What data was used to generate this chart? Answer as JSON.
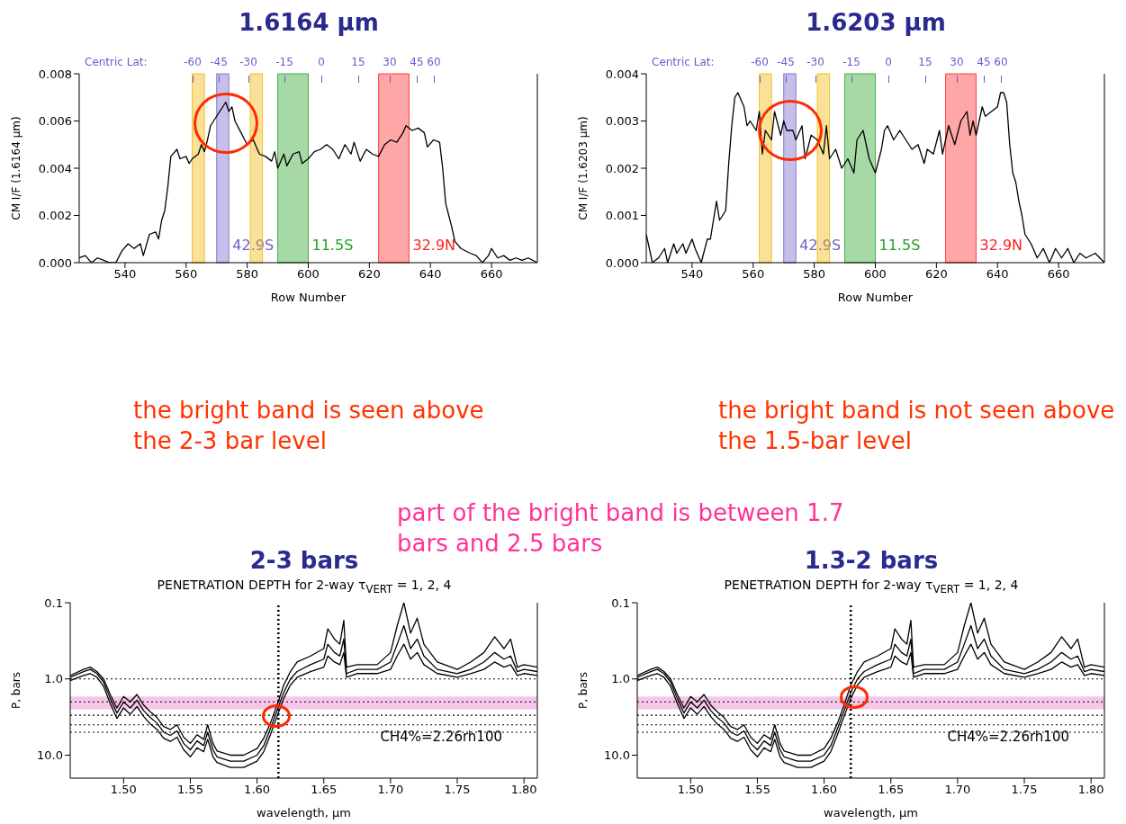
{
  "chart_data": [
    {
      "type": "line",
      "title": "1.6164 μm",
      "xlabel": "Row Number",
      "ylabel": "CM I/F (1.6164 μm)",
      "xlim": [
        525,
        675
      ],
      "xticks": [
        540,
        560,
        580,
        600,
        620,
        640,
        660
      ],
      "ylim": [
        0,
        0.008
      ],
      "yticks": [
        {
          "value": 0,
          "label": "0.000"
        },
        {
          "value": 0.002,
          "label": "0.002"
        },
        {
          "value": 0.004,
          "label": "0.004"
        },
        {
          "value": 0.006,
          "label": "0.006"
        },
        {
          "value": 0.008,
          "label": "0.008"
        }
      ],
      "x": [
        525,
        527,
        529,
        531,
        533,
        535,
        537,
        539,
        541,
        543,
        545,
        546,
        548,
        550,
        551,
        552,
        553,
        554,
        555,
        557,
        558,
        560,
        561,
        562,
        564,
        565,
        566,
        567,
        568,
        570,
        572,
        573,
        574,
        575,
        576,
        578,
        580,
        582,
        584,
        586,
        588,
        589,
        590,
        592,
        593,
        595,
        597,
        598,
        600,
        602,
        604,
        606,
        608,
        610,
        612,
        614,
        615,
        617,
        619,
        621,
        623,
        625,
        627,
        629,
        631,
        632,
        634,
        636,
        638,
        639,
        641,
        643,
        644,
        645,
        646,
        647,
        648,
        650,
        653,
        655,
        657,
        659,
        660,
        662,
        664,
        666,
        668,
        670,
        672,
        675
      ],
      "series": [
        {
          "color": "#000000",
          "values": [
            0.0002,
            0.0003,
            0.0,
            0.0002,
            0.0001,
            0.0,
            0.0,
            0.0005,
            0.0008,
            0.0006,
            0.0008,
            0.0003,
            0.0012,
            0.0013,
            0.001,
            0.0018,
            0.0022,
            0.0032,
            0.0045,
            0.0048,
            0.0044,
            0.0045,
            0.0042,
            0.0044,
            0.0046,
            0.005,
            0.0047,
            0.0052,
            0.0058,
            0.0062,
            0.0066,
            0.0068,
            0.0064,
            0.0066,
            0.006,
            0.0055,
            0.005,
            0.0052,
            0.0046,
            0.0045,
            0.0043,
            0.0047,
            0.004,
            0.0046,
            0.0041,
            0.0046,
            0.0047,
            0.0042,
            0.0044,
            0.0047,
            0.0048,
            0.005,
            0.0048,
            0.0044,
            0.005,
            0.0046,
            0.0051,
            0.0043,
            0.0048,
            0.0046,
            0.0045,
            0.005,
            0.0052,
            0.0051,
            0.0055,
            0.0058,
            0.0056,
            0.0057,
            0.0055,
            0.0049,
            0.0052,
            0.0051,
            0.004,
            0.0025,
            0.002,
            0.0015,
            0.0009,
            0.0006,
            0.0004,
            0.0003,
            0.0,
            0.0003,
            0.0006,
            0.0002,
            0.0003,
            0.0001,
            0.0002,
            0.0001,
            0.0002,
            0.0
          ]
        }
      ],
      "bands": [
        {
          "axis": "x",
          "from": 562,
          "to": 566,
          "color": "#f0b400"
        },
        {
          "axis": "x",
          "from": 570,
          "to": 574,
          "color": "#7060c8",
          "label": "42.9S"
        },
        {
          "axis": "x",
          "from": 581,
          "to": 585,
          "color": "#f0b400"
        },
        {
          "axis": "x",
          "from": 590,
          "to": 600,
          "color": "#20a020",
          "label": "11.5S"
        },
        {
          "axis": "x",
          "from": 623,
          "to": 633,
          "color": "#ff2020",
          "label": "32.9N"
        }
      ],
      "annotations": [
        "the bright band is seen above the 2-3 bar level",
        "Centric Lat:",
        "-60",
        "-45",
        "-30",
        "-15",
        "0",
        "15",
        "30",
        "45",
        "60"
      ]
    },
    {
      "type": "line",
      "title": "1.6203 μm",
      "xlabel": "Row Number",
      "ylabel": "CM I/F (1.6203 μm)",
      "xlim": [
        525,
        675
      ],
      "xticks": [
        540,
        560,
        580,
        600,
        620,
        640,
        660
      ],
      "ylim": [
        0,
        0.004
      ],
      "yticks": [
        {
          "value": 0,
          "label": "0.000"
        },
        {
          "value": 0.001,
          "label": "0.001"
        },
        {
          "value": 0.002,
          "label": "0.002"
        },
        {
          "value": 0.003,
          "label": "0.003"
        },
        {
          "value": 0.004,
          "label": "0.004"
        }
      ],
      "x": [
        525,
        527,
        529,
        531,
        532,
        534,
        535,
        537,
        538,
        540,
        541,
        543,
        545,
        546,
        548,
        549,
        551,
        552,
        553,
        554,
        555,
        557,
        558,
        559,
        561,
        562,
        563,
        564,
        566,
        567,
        569,
        570,
        571,
        573,
        574,
        576,
        577,
        579,
        581,
        583,
        584,
        585,
        587,
        589,
        591,
        593,
        594,
        596,
        598,
        600,
        602,
        603,
        604,
        606,
        608,
        610,
        612,
        614,
        616,
        617,
        619,
        621,
        622,
        624,
        626,
        628,
        630,
        631,
        632,
        633,
        635,
        636,
        638,
        640,
        641,
        642,
        643,
        644,
        645,
        646,
        647,
        648,
        649,
        651,
        653,
        655,
        657,
        659,
        661,
        663,
        665,
        667,
        669,
        672,
        675
      ],
      "series": [
        {
          "color": "#000000",
          "values": [
            0.0006,
            0.0,
            0.0001,
            0.0003,
            0.0,
            0.0004,
            0.0002,
            0.0004,
            0.0002,
            0.0005,
            0.0003,
            0.0,
            0.0005,
            0.0005,
            0.0013,
            0.0009,
            0.0011,
            0.0021,
            0.0029,
            0.0035,
            0.0036,
            0.0033,
            0.0029,
            0.003,
            0.0028,
            0.0032,
            0.0023,
            0.0028,
            0.0026,
            0.0032,
            0.0027,
            0.003,
            0.0028,
            0.0028,
            0.0026,
            0.0029,
            0.0022,
            0.0027,
            0.0026,
            0.0023,
            0.0029,
            0.0022,
            0.0024,
            0.002,
            0.0022,
            0.0019,
            0.0026,
            0.0028,
            0.0022,
            0.0019,
            0.0024,
            0.0028,
            0.0029,
            0.0026,
            0.0028,
            0.0026,
            0.0024,
            0.0025,
            0.0021,
            0.0024,
            0.0023,
            0.0028,
            0.0023,
            0.0029,
            0.0025,
            0.003,
            0.0032,
            0.0027,
            0.003,
            0.0027,
            0.0033,
            0.0031,
            0.0032,
            0.0033,
            0.0036,
            0.0036,
            0.0034,
            0.0025,
            0.0019,
            0.0017,
            0.0013,
            0.001,
            0.0006,
            0.0004,
            0.0001,
            0.0003,
            0.0,
            0.0003,
            0.0001,
            0.0003,
            0.0,
            0.0002,
            0.0001,
            0.0002,
            0.0
          ]
        }
      ],
      "bands": [
        {
          "axis": "x",
          "from": 562,
          "to": 566,
          "color": "#f0b400"
        },
        {
          "axis": "x",
          "from": 570,
          "to": 574,
          "color": "#7060c8",
          "label": "42.9S"
        },
        {
          "axis": "x",
          "from": 581,
          "to": 585,
          "color": "#f0b400"
        },
        {
          "axis": "x",
          "from": 590,
          "to": 600,
          "color": "#20a020",
          "label": "11.5S"
        },
        {
          "axis": "x",
          "from": 623,
          "to": 633,
          "color": "#ff2020",
          "label": "32.9N"
        }
      ],
      "annotations": [
        "the bright band is not seen above the 1.5-bar level",
        "Centric Lat:",
        "-60",
        "-45",
        "-30",
        "-15",
        "0",
        "15",
        "30",
        "45",
        "60"
      ]
    },
    {
      "type": "line",
      "title": "2-3 bars",
      "subtitle": "PENETRATION DEPTH for 2-way τ$_{VERT}$ = 1, 2, 4",
      "xlabel": "wavelength, μm",
      "ylabel": "P, bars",
      "log": "y",
      "xlim": [
        1.46,
        1.81
      ],
      "xticks": [
        {
          "value": 1.5,
          "label": "1.50"
        },
        {
          "value": 1.55,
          "label": "1.55"
        },
        {
          "value": 1.6,
          "label": "1.60"
        },
        {
          "value": 1.65,
          "label": "1.65"
        },
        {
          "value": 1.7,
          "label": "1.70"
        },
        {
          "value": 1.75,
          "label": "1.75"
        },
        {
          "value": 1.8,
          "label": "1.80"
        }
      ],
      "ylim": [
        20,
        0.1
      ],
      "yticks": [
        0.1,
        {
          "value": 1,
          "label": "1.0"
        },
        {
          "value": 10,
          "label": "10.0"
        }
      ],
      "x": [
        1.46,
        1.47,
        1.475,
        1.48,
        1.485,
        1.49,
        1.495,
        1.5,
        1.505,
        1.51,
        1.515,
        1.52,
        1.525,
        1.53,
        1.535,
        1.54,
        1.545,
        1.55,
        1.555,
        1.56,
        1.563,
        1.567,
        1.57,
        1.58,
        1.59,
        1.6,
        1.605,
        1.61,
        1.615,
        1.62,
        1.625,
        1.63,
        1.64,
        1.65,
        1.653,
        1.658,
        1.662,
        1.665,
        1.667,
        1.675,
        1.69,
        1.7,
        1.705,
        1.71,
        1.715,
        1.72,
        1.725,
        1.735,
        1.75,
        1.76,
        1.77,
        1.778,
        1.785,
        1.79,
        1.795,
        1.8,
        1.81
      ],
      "series": [
        {
          "color": "#000000",
          "values": [
            0.9,
            0.75,
            0.7,
            0.8,
            1.0,
            1.6,
            2.4,
            1.7,
            2.0,
            1.6,
            2.2,
            2.7,
            3.2,
            4.2,
            4.6,
            4.0,
            5.8,
            7.0,
            5.4,
            6.2,
            4.0,
            7.0,
            8.8,
            10,
            10,
            8.2,
            6.0,
            3.8,
            2.2,
            1.2,
            0.8,
            0.6,
            0.5,
            0.4,
            0.22,
            0.3,
            0.35,
            0.17,
            0.7,
            0.65,
            0.65,
            0.45,
            0.2,
            0.1,
            0.25,
            0.16,
            0.35,
            0.6,
            0.75,
            0.6,
            0.45,
            0.28,
            0.4,
            0.3,
            0.7,
            0.65,
            0.7
          ]
        },
        {
          "color": "#000000",
          "values": [
            0.95,
            0.8,
            0.75,
            0.85,
            1.1,
            1.8,
            2.8,
            2.0,
            2.4,
            1.9,
            2.6,
            3.2,
            3.8,
            5.0,
            5.5,
            4.8,
            7.0,
            8.5,
            6.5,
            7.5,
            5.0,
            8.5,
            10.5,
            12,
            12,
            10,
            7.5,
            4.5,
            2.6,
            1.5,
            1.0,
            0.8,
            0.65,
            0.55,
            0.35,
            0.45,
            0.5,
            0.3,
            0.85,
            0.75,
            0.75,
            0.6,
            0.35,
            0.2,
            0.4,
            0.3,
            0.5,
            0.75,
            0.85,
            0.75,
            0.6,
            0.45,
            0.55,
            0.5,
            0.8,
            0.75,
            0.8
          ]
        },
        {
          "color": "#000000",
          "values": [
            1.05,
            0.9,
            0.85,
            0.95,
            1.25,
            2.1,
            3.3,
            2.4,
            2.9,
            2.3,
            3.1,
            3.9,
            4.6,
            6.0,
            6.6,
            5.8,
            8.5,
            10.5,
            8.0,
            9.0,
            6.2,
            10.5,
            12.5,
            14.5,
            14.5,
            12,
            9,
            5.4,
            3.1,
            1.8,
            1.2,
            0.95,
            0.8,
            0.7,
            0.5,
            0.6,
            0.65,
            0.45,
            0.95,
            0.85,
            0.85,
            0.75,
            0.5,
            0.35,
            0.55,
            0.45,
            0.65,
            0.85,
            0.95,
            0.85,
            0.75,
            0.6,
            0.7,
            0.65,
            0.9,
            0.85,
            0.9
          ]
        }
      ],
      "bands": [
        {
          "axis": "y",
          "from": 1.7,
          "to": 2.5,
          "color": "#f0a0d8"
        }
      ],
      "ref_lines": [
        {
          "axis": "x",
          "value": 1.616,
          "line_style": "dotted"
        },
        {
          "axis": "y",
          "value": 1,
          "line_style": "dotted"
        },
        {
          "axis": "y",
          "value": 2,
          "line_style": "dotted"
        },
        {
          "axis": "y",
          "value": 3,
          "line_style": "dotted"
        },
        {
          "axis": "y",
          "value": 4,
          "line_style": "dotted"
        },
        {
          "axis": "y",
          "value": 5,
          "line_style": "dotted"
        }
      ],
      "annotations": [
        "CH4%=2.26rh100",
        "part of the bright band is between 1.7 bars and 2.5 bars"
      ]
    },
    {
      "type": "line",
      "title": "1.3-2 bars",
      "subtitle": "PENETRATION DEPTH for 2-way τ$_{VERT}$ = 1, 2, 4",
      "xlabel": "wavelength, μm",
      "ylabel": "P, bars",
      "log": "y",
      "xlim": [
        1.46,
        1.81
      ],
      "xticks": [
        {
          "value": 1.5,
          "label": "1.50"
        },
        {
          "value": 1.55,
          "label": "1.55"
        },
        {
          "value": 1.6,
          "label": "1.60"
        },
        {
          "value": 1.65,
          "label": "1.65"
        },
        {
          "value": 1.7,
          "label": "1.70"
        },
        {
          "value": 1.75,
          "label": "1.75"
        },
        {
          "value": 1.8,
          "label": "1.80"
        }
      ],
      "ylim": [
        20,
        0.1
      ],
      "yticks": [
        0.1,
        {
          "value": 1,
          "label": "1.0"
        },
        {
          "value": 10,
          "label": "10.0"
        }
      ],
      "x": [
        1.46,
        1.47,
        1.475,
        1.48,
        1.485,
        1.49,
        1.495,
        1.5,
        1.505,
        1.51,
        1.515,
        1.52,
        1.525,
        1.53,
        1.535,
        1.54,
        1.545,
        1.55,
        1.555,
        1.56,
        1.563,
        1.567,
        1.57,
        1.58,
        1.59,
        1.6,
        1.605,
        1.61,
        1.615,
        1.62,
        1.625,
        1.63,
        1.64,
        1.65,
        1.653,
        1.658,
        1.662,
        1.665,
        1.667,
        1.675,
        1.69,
        1.7,
        1.705,
        1.71,
        1.715,
        1.72,
        1.725,
        1.735,
        1.75,
        1.76,
        1.77,
        1.778,
        1.785,
        1.79,
        1.795,
        1.8,
        1.81
      ],
      "series": [
        {
          "color": "#000000",
          "values": [
            0.9,
            0.75,
            0.7,
            0.8,
            1.0,
            1.6,
            2.4,
            1.7,
            2.0,
            1.6,
            2.2,
            2.7,
            3.2,
            4.2,
            4.6,
            4.0,
            5.8,
            7.0,
            5.4,
            6.2,
            4.0,
            7.0,
            8.8,
            10,
            10,
            8.2,
            6.0,
            3.8,
            2.2,
            1.2,
            0.8,
            0.6,
            0.5,
            0.4,
            0.22,
            0.3,
            0.35,
            0.17,
            0.7,
            0.65,
            0.65,
            0.45,
            0.2,
            0.1,
            0.25,
            0.16,
            0.35,
            0.6,
            0.75,
            0.6,
            0.45,
            0.28,
            0.4,
            0.3,
            0.7,
            0.65,
            0.7
          ]
        },
        {
          "color": "#000000",
          "values": [
            0.95,
            0.8,
            0.75,
            0.85,
            1.1,
            1.8,
            2.8,
            2.0,
            2.4,
            1.9,
            2.6,
            3.2,
            3.8,
            5.0,
            5.5,
            4.8,
            7.0,
            8.5,
            6.5,
            7.5,
            5.0,
            8.5,
            10.5,
            12,
            12,
            10,
            7.5,
            4.5,
            2.6,
            1.5,
            1.0,
            0.8,
            0.65,
            0.55,
            0.35,
            0.45,
            0.5,
            0.3,
            0.85,
            0.75,
            0.75,
            0.6,
            0.35,
            0.2,
            0.4,
            0.3,
            0.5,
            0.75,
            0.85,
            0.75,
            0.6,
            0.45,
            0.55,
            0.5,
            0.8,
            0.75,
            0.8
          ]
        },
        {
          "color": "#000000",
          "values": [
            1.05,
            0.9,
            0.85,
            0.95,
            1.25,
            2.1,
            3.3,
            2.4,
            2.9,
            2.3,
            3.1,
            3.9,
            4.6,
            6.0,
            6.6,
            5.8,
            8.5,
            10.5,
            8.0,
            9.0,
            6.2,
            10.5,
            12.5,
            14.5,
            14.5,
            12,
            9,
            5.4,
            3.1,
            1.8,
            1.2,
            0.95,
            0.8,
            0.7,
            0.5,
            0.6,
            0.65,
            0.45,
            0.95,
            0.85,
            0.85,
            0.75,
            0.5,
            0.35,
            0.55,
            0.45,
            0.65,
            0.85,
            0.95,
            0.85,
            0.75,
            0.6,
            0.7,
            0.65,
            0.9,
            0.85,
            0.9
          ]
        }
      ],
      "bands": [
        {
          "axis": "y",
          "from": 1.7,
          "to": 2.5,
          "color": "#f0a0d8"
        }
      ],
      "ref_lines": [
        {
          "axis": "x",
          "value": 1.62,
          "line_style": "dotted"
        },
        {
          "axis": "y",
          "value": 1,
          "line_style": "dotted"
        },
        {
          "axis": "y",
          "value": 2,
          "line_style": "dotted"
        },
        {
          "axis": "y",
          "value": 3,
          "line_style": "dotted"
        },
        {
          "axis": "y",
          "value": 4,
          "line_style": "dotted"
        },
        {
          "axis": "y",
          "value": 5,
          "line_style": "dotted"
        }
      ],
      "annotations": [
        "CH4%=2.26rh100"
      ]
    }
  ]
}
